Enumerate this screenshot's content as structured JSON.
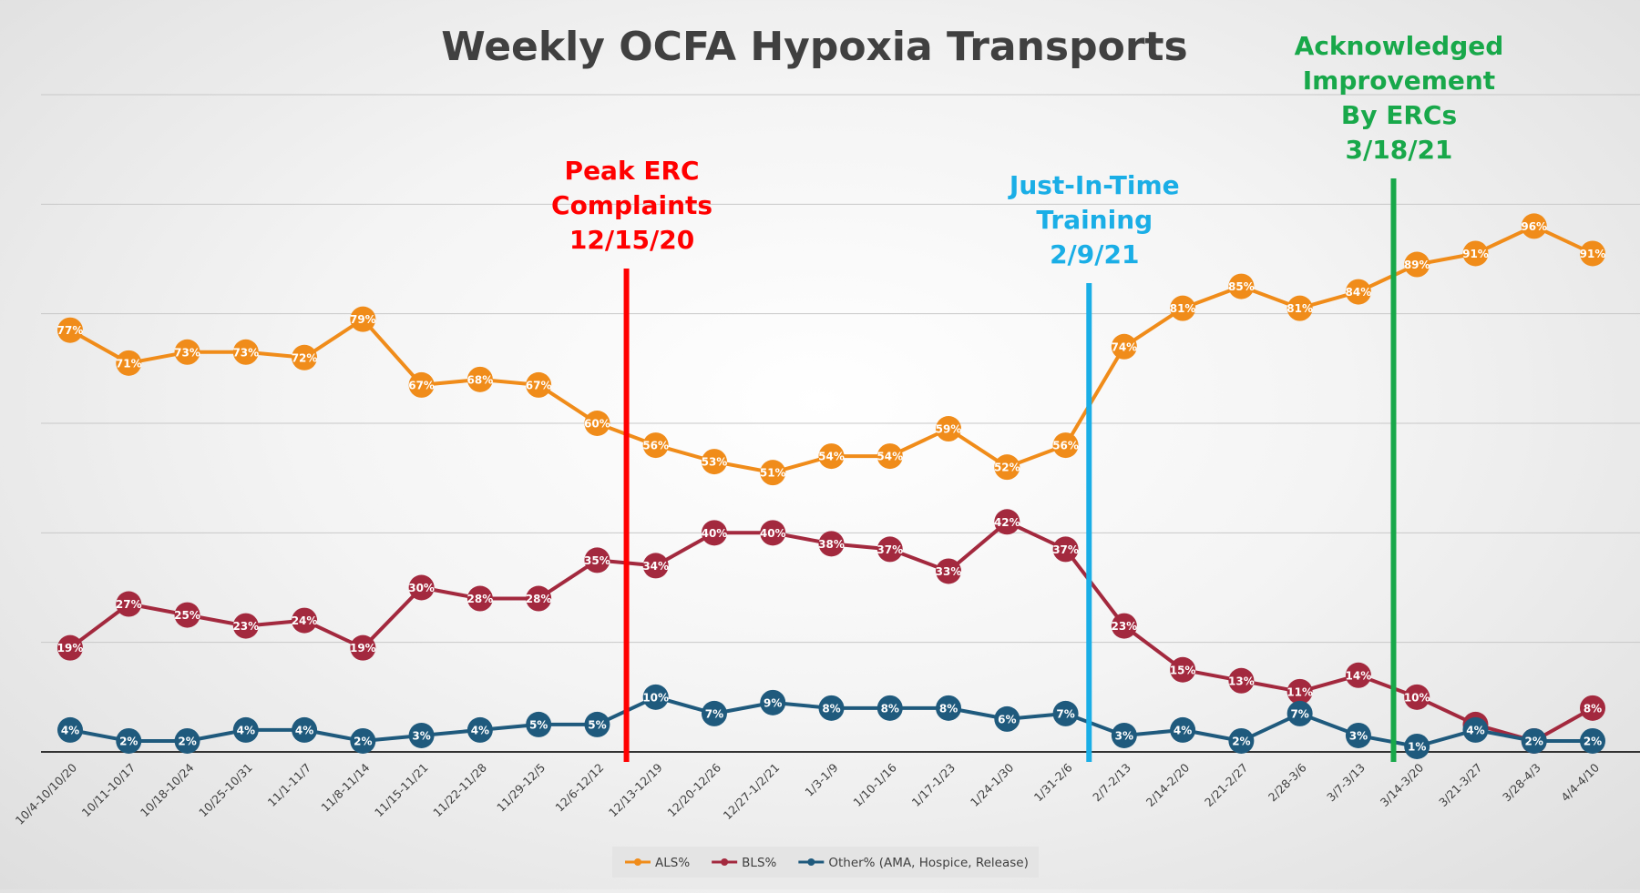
{
  "chart_data": {
    "type": "line",
    "title": "Weekly OCFA Hypoxia Transports",
    "xlabel": "",
    "ylabel": "",
    "ylim": [
      0,
      1.2
    ],
    "grid": true,
    "legend_position": "bottom",
    "categories": [
      "10/4-10/10/20",
      "10/11-10/17",
      "10/18-10/24",
      "10/25-10/31",
      "11/1-11/7",
      "11/8-11/14",
      "11/15-11/21",
      "11/22-11/28",
      "11/29-12/5",
      "12/6-12/12",
      "12/13-12/19",
      "12/20-12/26",
      "12/27-1/2/21",
      "1/3-1/9",
      "1/10-1/16",
      "1/17-1/23",
      "1/24-1/30",
      "1/31-2/6",
      "2/7-2/13",
      "2/14-2/20",
      "2/21-2/27",
      "2/28-3/6",
      "3/7-3/13",
      "3/14-3/20",
      "3/21-3/27",
      "3/28-4/3",
      "4/4-4/10"
    ],
    "series": [
      {
        "name": "ALS%",
        "color": "#f08c1a",
        "values": [
          77,
          71,
          73,
          73,
          72,
          79,
          67,
          68,
          67,
          60,
          56,
          53,
          51,
          54,
          54,
          59,
          52,
          56,
          74,
          81,
          85,
          81,
          84,
          89,
          91,
          96,
          91
        ],
        "labels": [
          "77%",
          "71%",
          "73%",
          "73%",
          "72%",
          "79%",
          "67%",
          "68%",
          "67%",
          "60%",
          "56%",
          "53%",
          "51%",
          "54%",
          "54%",
          "59%",
          "52%",
          "56%",
          "74%",
          "81%",
          "85%",
          "81%",
          "84%",
          "89%",
          "91%",
          "96%",
          "91%"
        ]
      },
      {
        "name": "BLS%",
        "color": "#a3293e",
        "values": [
          19,
          27,
          25,
          23,
          24,
          19,
          30,
          28,
          28,
          35,
          34,
          40,
          40,
          38,
          37,
          33,
          42,
          37,
          23,
          15,
          13,
          11,
          14,
          10,
          5,
          2,
          8
        ],
        "labels": [
          "19%",
          "27%",
          "25%",
          "23%",
          "24%",
          "19%",
          "30%",
          "28%",
          "28%",
          "35%",
          "34%",
          "40%",
          "40%",
          "38%",
          "37%",
          "33%",
          "42%",
          "37%",
          "23%",
          "15%",
          "13%",
          "11%",
          "14%",
          "10%",
          "5%",
          "2%",
          "8%"
        ]
      },
      {
        "name": "Other% (AMA, Hospice, Release)",
        "color": "#1f5a7d",
        "values": [
          4,
          2,
          2,
          4,
          4,
          2,
          3,
          4,
          5,
          5,
          10,
          7,
          9,
          8,
          8,
          8,
          6,
          7,
          3,
          4,
          2,
          7,
          3,
          1,
          4,
          2,
          2
        ],
        "labels": [
          "4%",
          "2%",
          "2%",
          "4%",
          "4%",
          "2%",
          "3%",
          "4%",
          "5%",
          "5%",
          "10%",
          "7%",
          "9%",
          "8%",
          "8%",
          "8%",
          "6%",
          "7%",
          "3%",
          "4%",
          "2%",
          "7%",
          "3%",
          "1%",
          "4%",
          "2%",
          "2%"
        ]
      }
    ],
    "annotations": [
      {
        "lines": [
          "Peak ERC",
          "Complaints",
          "12/15/20"
        ],
        "color": "#ff0000",
        "at_category": "12/13-12/19",
        "offset": -0.5
      },
      {
        "lines": [
          "Just-In-Time",
          "Training",
          "2/9/21"
        ],
        "color": "#1aaee6",
        "at_category": "2/7-2/13",
        "offset": -0.6
      },
      {
        "lines": [
          "Acknowledged",
          "Improvement",
          "By ERCs",
          "3/18/21"
        ],
        "color": "#18a84a",
        "at_category": "3/14-3/20",
        "offset": -0.4
      }
    ]
  }
}
